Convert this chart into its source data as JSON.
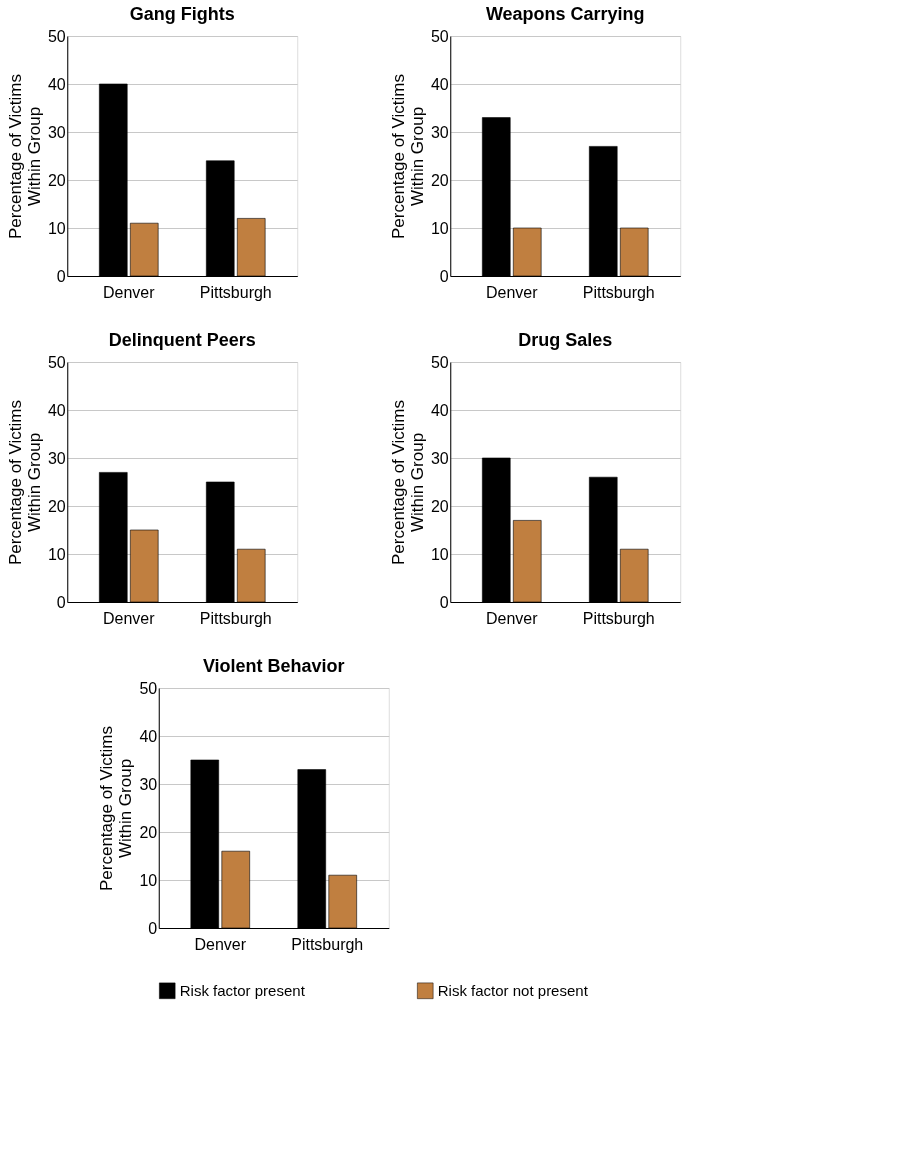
{
  "chart_data": [
    {
      "type": "bar",
      "title": "Gang Fights",
      "ylabel": "Percentage of Victims\nWithin Group",
      "categories": [
        "Denver",
        "Pittsburgh"
      ],
      "ylim": [
        0,
        50
      ],
      "yticks": [
        0,
        10,
        20,
        30,
        40,
        50
      ],
      "grid": "y",
      "series": [
        {
          "color": "#000000",
          "values": [
            40,
            24
          ]
        },
        {
          "color": "#c07f40",
          "values": [
            11,
            12
          ]
        }
      ]
    },
    {
      "type": "bar",
      "title": "Weapons Carrying",
      "ylabel": "Percentage of Victims\nWithin Group",
      "categories": [
        "Denver",
        "Pittsburgh"
      ],
      "ylim": [
        0,
        50
      ],
      "yticks": [
        0,
        10,
        20,
        30,
        40,
        50
      ],
      "grid": "y",
      "series": [
        {
          "color": "#000000",
          "values": [
            33,
            27
          ]
        },
        {
          "color": "#c07f40",
          "values": [
            10,
            10
          ]
        }
      ]
    },
    {
      "type": "bar",
      "title": "Delinquent Peers",
      "ylabel": "Percentage of Victims\nWithin Group",
      "categories": [
        "Denver",
        "Pittsburgh"
      ],
      "ylim": [
        0,
        50
      ],
      "yticks": [
        0,
        10,
        20,
        30,
        40,
        50
      ],
      "grid": "y",
      "series": [
        {
          "color": "#000000",
          "values": [
            27,
            25
          ]
        },
        {
          "color": "#c07f40",
          "values": [
            15,
            11
          ]
        }
      ]
    },
    {
      "type": "bar",
      "title": "Drug Sales",
      "ylabel": "Percentage of Victims\nWithin Group",
      "categories": [
        "Denver",
        "Pittsburgh"
      ],
      "ylim": [
        0,
        50
      ],
      "yticks": [
        0,
        10,
        20,
        30,
        40,
        50
      ],
      "grid": "y",
      "series": [
        {
          "color": "#000000",
          "values": [
            30,
            26
          ]
        },
        {
          "color": "#c07f40",
          "values": [
            17,
            11
          ]
        }
      ]
    },
    {
      "type": "bar",
      "title": "Violent Behavior",
      "ylabel": "Percentage of Victims\nWithin Group",
      "categories": [
        "Denver",
        "Pittsburgh"
      ],
      "ylim": [
        0,
        50
      ],
      "yticks": [
        0,
        10,
        20,
        30,
        40,
        50
      ],
      "grid": "y",
      "legend": "bottom",
      "series": [
        {
          "name": "Risk factor present",
          "color": "#000000",
          "values": [
            35,
            33
          ]
        },
        {
          "name": "Risk factor not present",
          "color": "#c07f40",
          "values": [
            16,
            11
          ]
        }
      ]
    }
  ]
}
